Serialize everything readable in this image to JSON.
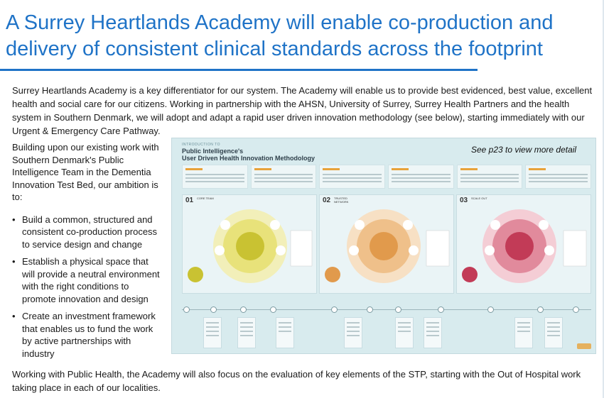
{
  "title": "A Surrey Heartlands Academy will enable co-production and delivery of consistent clinical standards across the footprint",
  "intro": "Surrey Heartlands Academy is a key differentiator for our system. The Academy will enable us to provide best evidenced, best value, excellent health and social care for our citizens. Working in partnership with the AHSN, University of Surrey, Surrey Health Partners and the health system in Southern Denmark, we will adopt and adapt a rapid user driven innovation methodology (see below), starting immediately with our Urgent & Emergency Care Pathway.",
  "left_col": {
    "lead": "Building upon our existing work with Southern Denmark's Public Intelligence Team in the Dementia Innovation Test Bed, our ambition is to:",
    "bullets": [
      "Build a common, structured and consistent co-production process to service design and change",
      "Establish a physical space that will provide a neutral environment with the right conditions to promote innovation and design",
      "Create an investment framework that enables us to fund the work by active partnerships with industry"
    ]
  },
  "infographic": {
    "kicker": "INTRODUCTION TO",
    "title_line1": "Public Intelligence's",
    "title_line2": "User Driven Health Innovation Methodology",
    "detail_note": "See p23 to view more detail",
    "panels": [
      {
        "num": "01",
        "label": "CORE TEAM",
        "color": "#c9c232",
        "ring": "#eee9a8"
      },
      {
        "num": "02",
        "label": "TRUSTED NETWORK",
        "color": "#e19a4c",
        "ring": "#f5d5ae"
      },
      {
        "num": "03",
        "label": "SCALE OUT",
        "color": "#c23b57",
        "ring": "#eeb9c3"
      }
    ]
  },
  "outro": "Working with Public Health, the Academy will also focus on the evaluation of key elements of the STP, starting with the Out of Hospital work taking place in each of our localities."
}
